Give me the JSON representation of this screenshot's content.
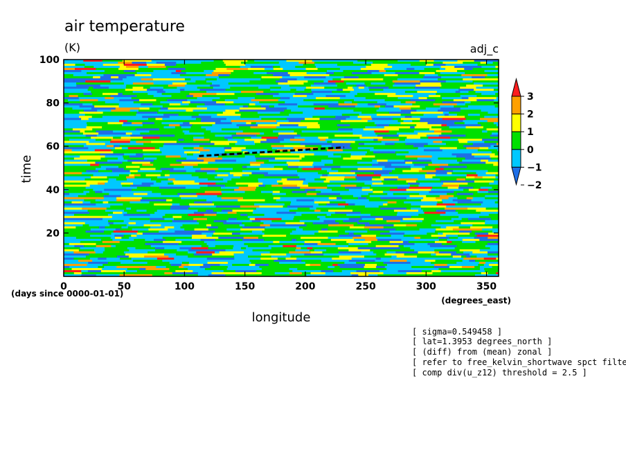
{
  "chart_data": {
    "type": "heatmap",
    "title": "air temperature",
    "units": "(K)",
    "experiment_label": "adj_c",
    "xlabel": "longitude",
    "xunits": "(degrees_east)",
    "ylabel": "time",
    "yunits": "(days since 0000-01-01)",
    "xlim": [
      0,
      360
    ],
    "ylim": [
      0,
      100
    ],
    "x_ticks": [
      0,
      50,
      100,
      150,
      200,
      250,
      300,
      350
    ],
    "y_ticks": [
      20,
      40,
      60,
      80,
      100
    ],
    "colorbar": {
      "levels": [
        -2,
        -1,
        0,
        1,
        2,
        3
      ],
      "labels": [
        "3",
        "2",
        "1",
        "0",
        "−1",
        "−2"
      ],
      "colors": [
        "#1e6ee6",
        "#00c8ff",
        "#00e000",
        "#ffff00",
        "#ffa000",
        "#ff1e1e"
      ],
      "under_color": "#1e6ee6",
      "over_color": "#ff1e1e"
    },
    "field_color_weights": {
      "-2": 0.12,
      "-1": 0.33,
      "0": 0.37,
      "1": 0.12,
      "2": 0.045,
      "3": 0.015
    },
    "tracked_line": {
      "x": [
        112,
        232
      ],
      "y": [
        55.5,
        59.5
      ],
      "style": "dashed",
      "color": "#000000"
    },
    "notes": [
      "[ sigma=0.549458 ]",
      "[ lat=1.3953 degrees_north ]",
      "[ (diff) from (mean) zonal ]",
      "[ refer to free_kelvin_shortwave spct filteri",
      "[ comp div(u_z12) threshold = 2.5 ]"
    ]
  }
}
